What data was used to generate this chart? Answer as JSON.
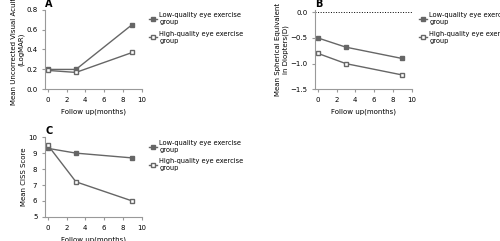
{
  "panel_A": {
    "title": "A",
    "xlabel": "Follow up(months)",
    "ylabel": "Mean Uncorrected Visual Acuity\n(LogMAR)",
    "x": [
      0,
      3,
      9
    ],
    "low_quality": [
      0.2,
      0.2,
      0.65
    ],
    "high_quality": [
      0.19,
      0.17,
      0.37
    ],
    "ylim": [
      0.0,
      0.8
    ],
    "yticks": [
      0.0,
      0.2,
      0.4,
      0.6,
      0.8
    ],
    "xlim": [
      -0.3,
      10
    ],
    "xticks": [
      0,
      2,
      4,
      6,
      8,
      10
    ]
  },
  "panel_B": {
    "title": "B",
    "xlabel": "Follow up(months)",
    "ylabel": "Mean Spherical Equivalent\nin Diopters(D)",
    "x": [
      0,
      3,
      9
    ],
    "low_quality": [
      -0.5,
      -0.68,
      -0.9
    ],
    "high_quality": [
      -0.8,
      -1.0,
      -1.22
    ],
    "ylim": [
      -1.5,
      0.05
    ],
    "yticks": [
      -1.5,
      -1.0,
      -0.5,
      0.0
    ],
    "xlim": [
      -0.3,
      10
    ],
    "xticks": [
      0,
      2,
      4,
      6,
      8,
      10
    ],
    "hline_y": 0.0
  },
  "panel_C": {
    "title": "C",
    "xlabel": "Follow up(months)",
    "ylabel": "Mean CISS Score",
    "x": [
      0,
      3,
      9
    ],
    "low_quality": [
      9.3,
      9.0,
      8.7
    ],
    "high_quality": [
      9.5,
      7.2,
      6.0
    ],
    "ylim": [
      5,
      10
    ],
    "yticks": [
      5,
      6,
      7,
      8,
      9,
      10
    ],
    "xlim": [
      -0.3,
      10
    ],
    "xticks": [
      0,
      2,
      4,
      6,
      8,
      10
    ]
  },
  "legend": {
    "low_quality_label": "Low-quality eye exercise\ngroup",
    "high_quality_label": "High-quality eye exercise\ngroup"
  },
  "line_color": "#666666",
  "marker": "s",
  "markersize": 3.5,
  "linewidth": 1.0,
  "title_fontsize": 7,
  "label_fontsize": 5.0,
  "tick_fontsize": 5.0,
  "legend_fontsize": 4.8
}
